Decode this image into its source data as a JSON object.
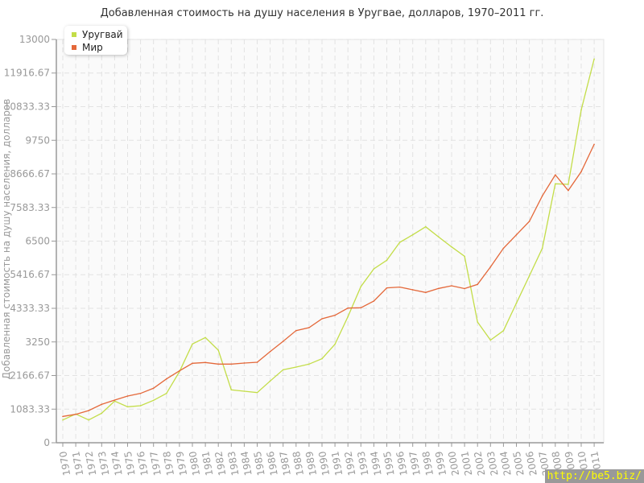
{
  "chart_data": {
    "type": "line",
    "title": "Добавленная стоимость на душу населения в Уругвае, долларов, 1970–2011 гг.",
    "ylabel": "Добавленная стоимость на душу населения, долларов",
    "xlabel": "",
    "ylim": [
      0,
      13000
    ],
    "yticks": [
      "0",
      "1083.33",
      "2166.67",
      "3250",
      "4333.33",
      "5416.67",
      "6500",
      "7583.33",
      "8666.67",
      "9750",
      "10833.33",
      "11916.67",
      "13000"
    ],
    "x": [
      "1970",
      "1971",
      "1972",
      "1973",
      "1974",
      "1975",
      "1976",
      "1977",
      "1978",
      "1979",
      "1980",
      "1981",
      "1982",
      "1983",
      "1984",
      "1985",
      "1986",
      "1987",
      "1988",
      "1989",
      "1990",
      "1991",
      "1992",
      "1993",
      "1994",
      "1995",
      "1996",
      "1997",
      "1998",
      "1999",
      "2000",
      "2001",
      "2002",
      "2003",
      "2004",
      "2005",
      "2006",
      "2007",
      "2008",
      "2009",
      "2010",
      "2011"
    ],
    "grid": true,
    "legend_position": "top-left",
    "series": [
      {
        "name": "Уругвай",
        "color": "#c3dd48",
        "values": [
          734,
          926,
          734,
          952,
          1341,
          1160,
          1194,
          1367,
          1591,
          2291,
          3183,
          3391,
          2984,
          1704,
          1661,
          1617,
          1990,
          2353,
          2439,
          2535,
          2709,
          3174,
          4065,
          5034,
          5605,
          5882,
          6461,
          6703,
          6962,
          6634,
          6313,
          6010,
          3892,
          3308,
          3611,
          4500,
          5381,
          6270,
          8347,
          8329,
          10727,
          12371
        ]
      },
      {
        "name": "Мир",
        "color": "#e4683a",
        "values": [
          848,
          916,
          1038,
          1238,
          1375,
          1505,
          1591,
          1757,
          2058,
          2317,
          2561,
          2587,
          2535,
          2535,
          2569,
          2594,
          2940,
          3269,
          3615,
          3711,
          3996,
          4108,
          4342,
          4351,
          4567,
          4991,
          5017,
          4931,
          4845,
          4974,
          5060,
          4970,
          5104,
          5667,
          6270,
          6703,
          7136,
          7959,
          8634,
          8131,
          8737,
          9620
        ]
      }
    ]
  },
  "watermark": "http://be5.biz/"
}
